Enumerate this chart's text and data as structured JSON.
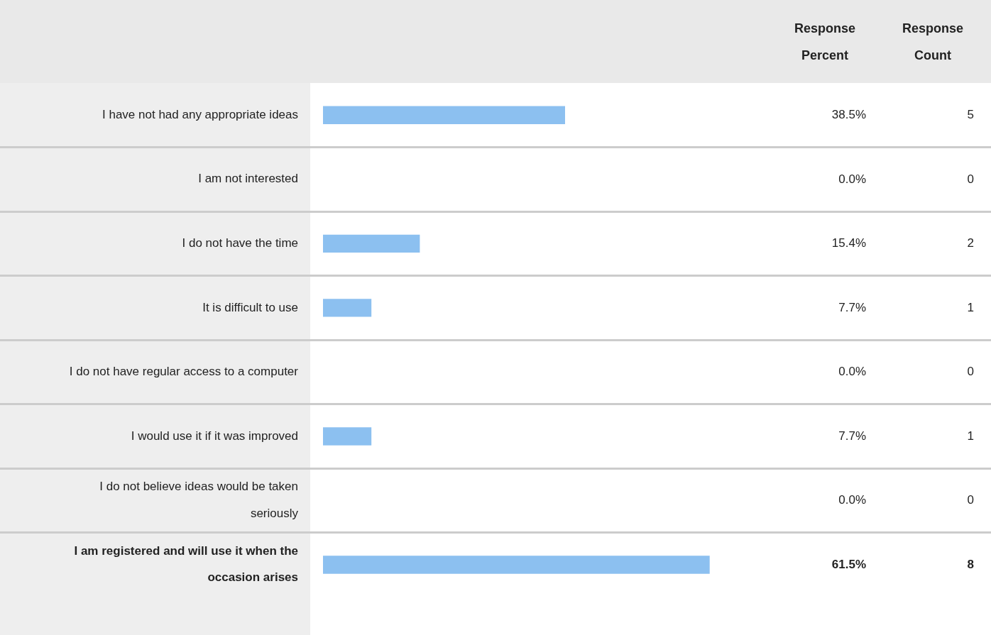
{
  "chart_data": {
    "type": "bar",
    "orientation": "horizontal",
    "categories": [
      "I have not had any appropriate ideas",
      "I am not interested",
      "I do not have the time",
      "It is difficult to use",
      "I do not have regular access to a computer",
      "I would use it if it was improved",
      "I do not believe ideas would be taken seriously",
      "I am registered and will use it when the occasion arises"
    ],
    "values": [
      38.5,
      0.0,
      15.4,
      7.7,
      0.0,
      7.7,
      0.0,
      61.5
    ],
    "value_labels": [
      "38.5%",
      "0.0%",
      "15.4%",
      "7.7%",
      "0.0%",
      "7.7%",
      "0.0%",
      "61.5%"
    ],
    "color": "#8cc0f0",
    "tick_labels": "y",
    "grid": false,
    "legend": false,
    "annotations": [
      "Response Percent",
      "Response Count",
      "5",
      "0",
      "2",
      "1",
      "0",
      "1",
      "0",
      "8"
    ]
  }
}
